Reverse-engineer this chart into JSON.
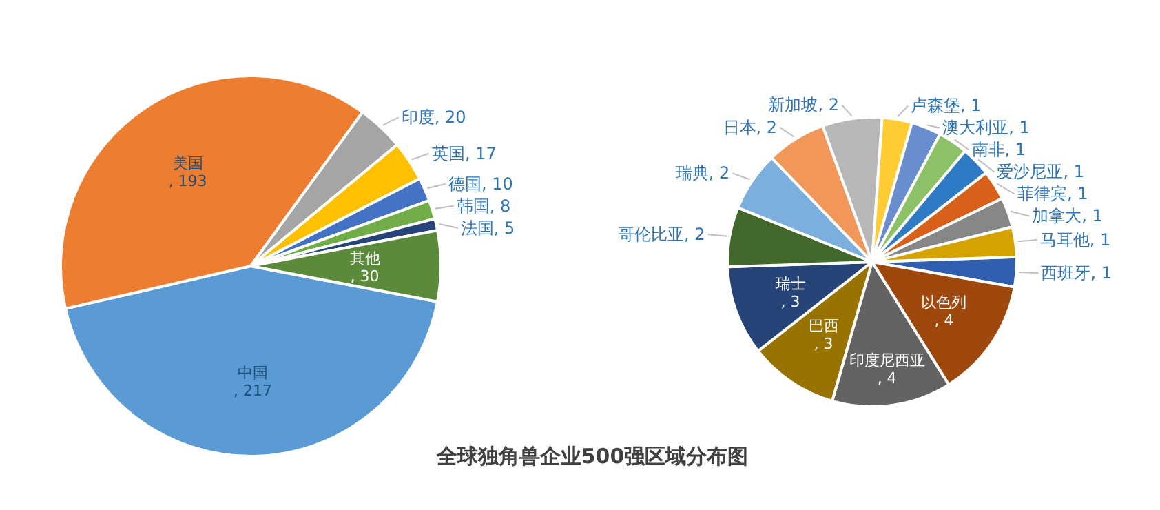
{
  "chart_data": [
    {
      "type": "pie",
      "title": "全球独角兽企业500强区域分布图",
      "categories": [
        "中国",
        "美国",
        "印度",
        "英国",
        "德国",
        "韩国",
        "法国",
        "其他"
      ],
      "values": [
        217,
        193,
        20,
        17,
        10,
        8,
        5,
        30
      ],
      "colors": [
        "#5b9bd5",
        "#ed7d31",
        "#a5a5a5",
        "#ffc000",
        "#4472c4",
        "#70ad47",
        "#264478",
        "#5a8a3a"
      ],
      "value_labels": [
        ", 217",
        ", 193",
        ", 20",
        ", 17",
        ", 10",
        ", 8",
        ", 5",
        ", 30"
      ]
    },
    {
      "type": "pie",
      "categories": [
        "西班牙",
        "以色列",
        "印度尼西亚",
        "巴西",
        "瑞士",
        "哥伦比亚",
        "瑞典",
        "日本",
        "新加坡",
        "卢森堡",
        "澳大利亚",
        "南非",
        "爱沙尼亚",
        "菲律宾",
        "加拿大",
        "马耳他"
      ],
      "values": [
        1,
        4,
        4,
        3,
        3,
        2,
        2,
        2,
        2,
        1,
        1,
        1,
        1,
        1,
        1,
        1
      ],
      "colors": [
        "#2f5fae",
        "#9e480e",
        "#636363",
        "#997300",
        "#264478",
        "#43682b",
        "#7cafdd",
        "#f1975a",
        "#b7b7b7",
        "#ffcd33",
        "#698ed0",
        "#8cc168",
        "#2f7ac4",
        "#d9601a",
        "#878787",
        "#d4a300"
      ],
      "value_labels": [
        ", 1",
        ", 4",
        ", 4",
        ", 3",
        ", 3",
        ", 2",
        ", 2",
        ", 2",
        ", 2",
        ", 1",
        ", 1",
        ", 1",
        ", 1",
        ", 1",
        ", 1",
        ", 1"
      ]
    }
  ]
}
